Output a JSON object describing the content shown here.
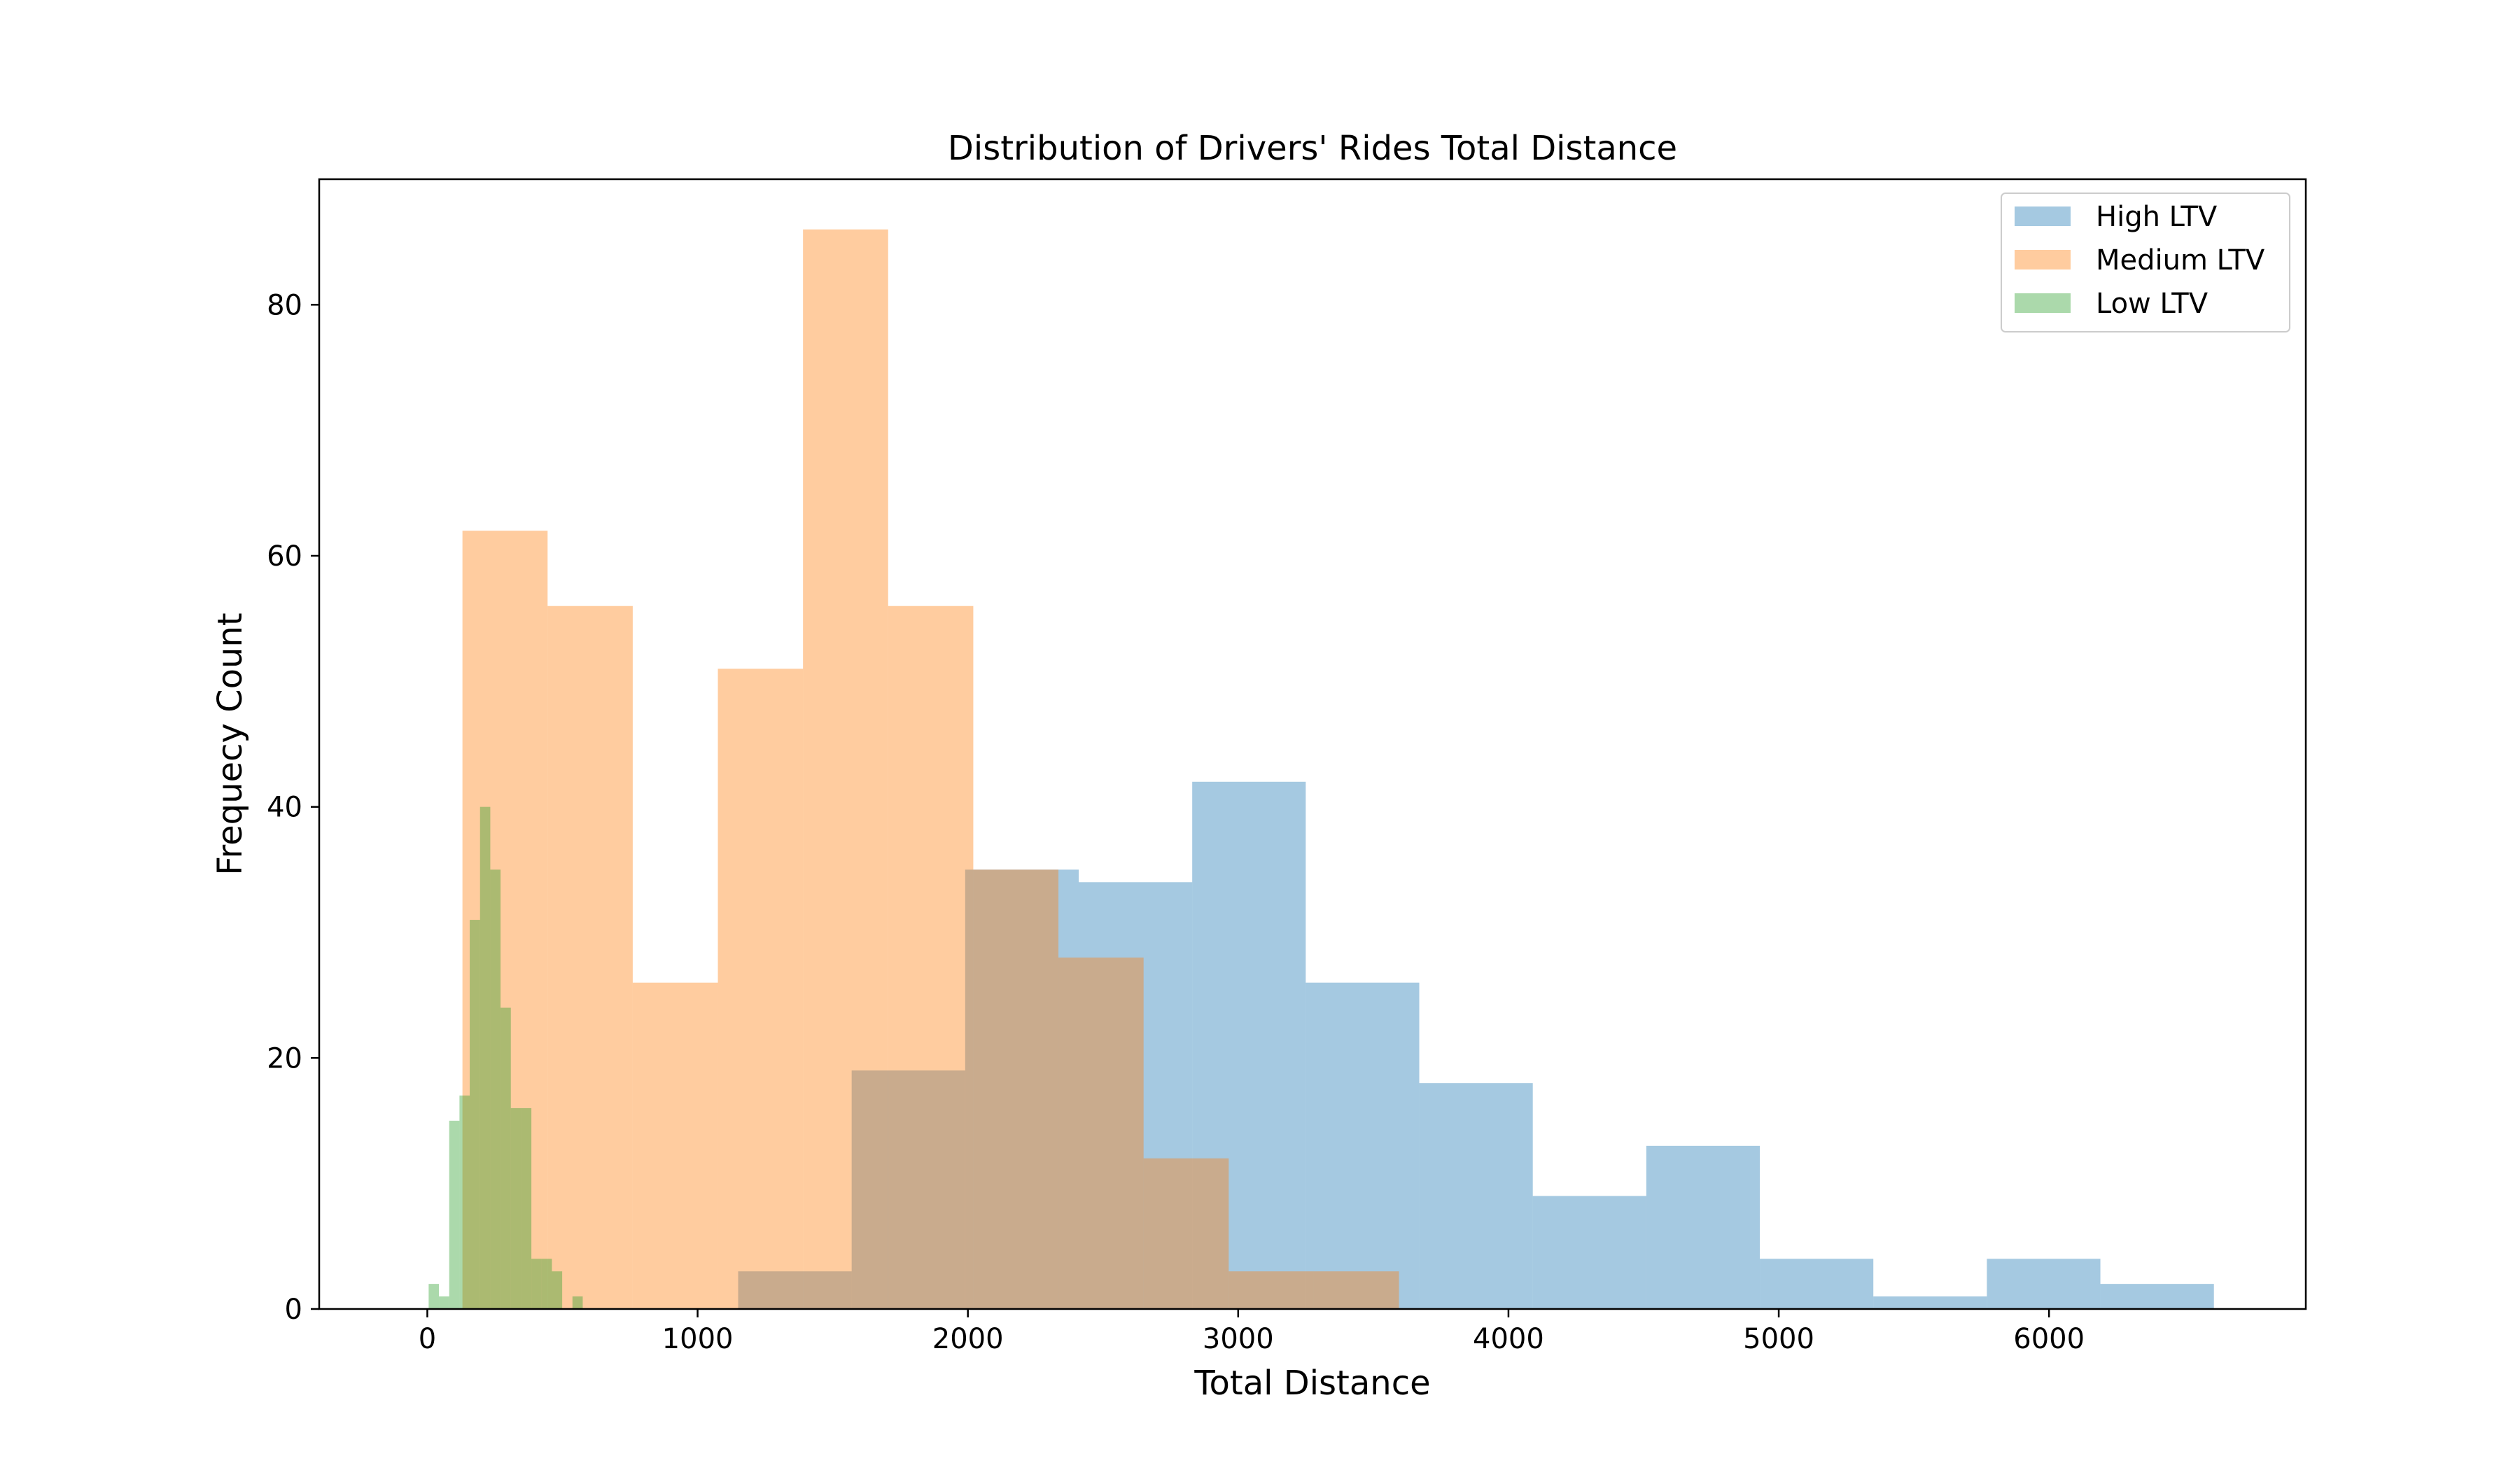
{
  "chart_data": {
    "type": "bar",
    "title": "Distribution of Drivers' Rides Total Distance",
    "xlabel": "Total Distance",
    "ylabel": "Frequecy Count",
    "xlim": [
      -400,
      6950
    ],
    "ylim": [
      0,
      90
    ],
    "xticks": [
      0,
      1000,
      2000,
      3000,
      4000,
      5000,
      6000
    ],
    "yticks": [
      0,
      20,
      40,
      60,
      80
    ],
    "legend_position": "top-right",
    "grid": false,
    "series": [
      {
        "name": "High LTV",
        "color": "#1f77b4",
        "opacity": 0.4,
        "bins": [
          {
            "x0": 1150,
            "x1": 1570,
            "count": 3
          },
          {
            "x0": 1570,
            "x1": 1990,
            "count": 19
          },
          {
            "x0": 1990,
            "x1": 2410,
            "count": 35
          },
          {
            "x0": 2410,
            "x1": 2830,
            "count": 34
          },
          {
            "x0": 2830,
            "x1": 3250,
            "count": 42
          },
          {
            "x0": 3250,
            "x1": 3670,
            "count": 26
          },
          {
            "x0": 3670,
            "x1": 4090,
            "count": 18
          },
          {
            "x0": 4090,
            "x1": 4510,
            "count": 9
          },
          {
            "x0": 4510,
            "x1": 4930,
            "count": 13
          },
          {
            "x0": 4930,
            "x1": 5350,
            "count": 4
          },
          {
            "x0": 5350,
            "x1": 5770,
            "count": 1
          },
          {
            "x0": 5770,
            "x1": 6190,
            "count": 4
          },
          {
            "x0": 6190,
            "x1": 6610,
            "count": 2
          }
        ]
      },
      {
        "name": "Medium LTV",
        "color": "#ff7f0e",
        "opacity": 0.4,
        "bins": [
          {
            "x0": 130,
            "x1": 445,
            "count": 62
          },
          {
            "x0": 445,
            "x1": 760,
            "count": 56
          },
          {
            "x0": 760,
            "x1": 1075,
            "count": 26
          },
          {
            "x0": 1075,
            "x1": 1390,
            "count": 51
          },
          {
            "x0": 1390,
            "x1": 1705,
            "count": 86
          },
          {
            "x0": 1705,
            "x1": 2020,
            "count": 56
          },
          {
            "x0": 2020,
            "x1": 2335,
            "count": 35
          },
          {
            "x0": 2335,
            "x1": 2650,
            "count": 28
          },
          {
            "x0": 2650,
            "x1": 2965,
            "count": 12
          },
          {
            "x0": 2965,
            "x1": 3280,
            "count": 3
          },
          {
            "x0": 3280,
            "x1": 3595,
            "count": 3
          }
        ]
      },
      {
        "name": "Low LTV",
        "color": "#2ca02c",
        "opacity": 0.4,
        "bins": [
          {
            "x0": 5,
            "x1": 43,
            "count": 2
          },
          {
            "x0": 43,
            "x1": 81,
            "count": 1
          },
          {
            "x0": 81,
            "x1": 119,
            "count": 15
          },
          {
            "x0": 119,
            "x1": 157,
            "count": 17
          },
          {
            "x0": 157,
            "x1": 195,
            "count": 31
          },
          {
            "x0": 195,
            "x1": 233,
            "count": 40
          },
          {
            "x0": 233,
            "x1": 271,
            "count": 35
          },
          {
            "x0": 271,
            "x1": 309,
            "count": 24
          },
          {
            "x0": 309,
            "x1": 347,
            "count": 16
          },
          {
            "x0": 347,
            "x1": 385,
            "count": 16
          },
          {
            "x0": 385,
            "x1": 423,
            "count": 4
          },
          {
            "x0": 423,
            "x1": 461,
            "count": 4
          },
          {
            "x0": 461,
            "x1": 499,
            "count": 3
          },
          {
            "x0": 499,
            "x1": 537,
            "count": 0
          },
          {
            "x0": 537,
            "x1": 575,
            "count": 1
          }
        ]
      }
    ]
  }
}
